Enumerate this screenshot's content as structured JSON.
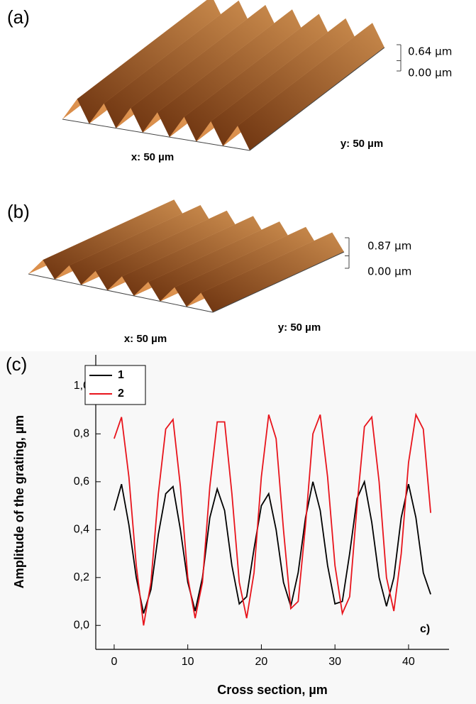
{
  "panels": [
    {
      "label": "(a)",
      "z_max": "0.64 µm",
      "z_min": "0.00 µm",
      "x_size": "x: 50 µm",
      "y_size": "y: 50 µm"
    },
    {
      "label": "(b)",
      "z_max": "0.87 µm",
      "z_min": "0.00 µm",
      "x_size": "x: 50 µm",
      "y_size": "y: 50 µm"
    }
  ],
  "chart_data": {
    "type": "line",
    "panel_label": "(c)",
    "annotation": "c)",
    "x_label": "Cross section, µm",
    "y_label": "Amplitude of the grating, µm",
    "x": [
      0,
      1,
      2,
      3,
      4,
      5,
      6,
      7,
      8,
      9,
      10,
      11,
      12,
      13,
      14,
      15,
      16,
      17,
      18,
      19,
      20,
      21,
      22,
      23,
      24,
      25,
      26,
      27,
      28,
      29,
      30,
      31,
      32,
      33,
      34,
      35,
      36,
      37,
      38,
      39,
      40,
      41,
      42,
      43
    ],
    "series": [
      {
        "name": "1",
        "color": "#000000",
        "values": [
          0.48,
          0.59,
          0.42,
          0.2,
          0.05,
          0.15,
          0.38,
          0.55,
          0.58,
          0.4,
          0.18,
          0.06,
          0.2,
          0.45,
          0.57,
          0.48,
          0.25,
          0.09,
          0.12,
          0.32,
          0.5,
          0.55,
          0.4,
          0.18,
          0.08,
          0.22,
          0.45,
          0.6,
          0.48,
          0.25,
          0.09,
          0.1,
          0.3,
          0.53,
          0.6,
          0.43,
          0.2,
          0.08,
          0.2,
          0.45,
          0.59,
          0.45,
          0.22,
          0.13
        ]
      },
      {
        "name": "2",
        "color": "#e8141c",
        "values": [
          0.78,
          0.87,
          0.62,
          0.25,
          0.0,
          0.18,
          0.55,
          0.82,
          0.86,
          0.58,
          0.2,
          0.03,
          0.18,
          0.58,
          0.85,
          0.85,
          0.55,
          0.18,
          0.03,
          0.22,
          0.62,
          0.88,
          0.78,
          0.4,
          0.07,
          0.1,
          0.42,
          0.8,
          0.88,
          0.62,
          0.25,
          0.05,
          0.12,
          0.5,
          0.83,
          0.87,
          0.6,
          0.2,
          0.06,
          0.3,
          0.68,
          0.88,
          0.82,
          0.47
        ]
      }
    ],
    "xlim": [
      -2.5,
      45.5
    ],
    "ylim": [
      -0.1,
      1.13
    ],
    "xticks": [
      0,
      10,
      20,
      30,
      40
    ],
    "yticks": [
      {
        "value": 0,
        "label": "0,0"
      },
      {
        "value": 0.2,
        "label": "0,2"
      },
      {
        "value": 0.4,
        "label": "0,4"
      },
      {
        "value": 0.6,
        "label": "0,6"
      },
      {
        "value": 0.8,
        "label": "0,8"
      },
      {
        "value": 1.0,
        "label": "1,0"
      }
    ],
    "legend": "top-left"
  }
}
